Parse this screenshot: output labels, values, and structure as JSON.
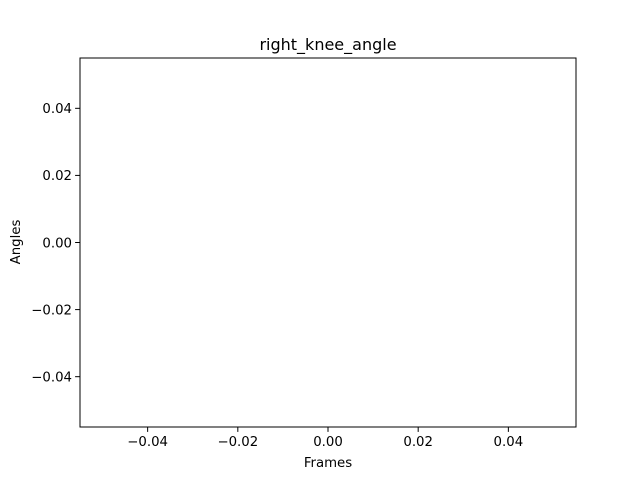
{
  "chart_data": {
    "type": "line",
    "title": "right_knee_angle",
    "xlabel": "Frames",
    "ylabel": "Angles",
    "xlim": [
      -0.055,
      0.055
    ],
    "ylim": [
      -0.055,
      0.055
    ],
    "xticks": [
      -0.04,
      -0.02,
      0.0,
      0.02,
      0.04
    ],
    "xtick_labels": [
      "−0.04",
      "−0.02",
      "0.00",
      "0.02",
      "0.04"
    ],
    "yticks": [
      -0.04,
      -0.02,
      0.0,
      0.02,
      0.04
    ],
    "ytick_labels": [
      "−0.04",
      "−0.02",
      "0.00",
      "0.02",
      "0.04"
    ],
    "series": [
      {
        "values": []
      }
    ],
    "grid": false,
    "colors": {
      "frame": "#000000",
      "background": "#ffffff"
    }
  }
}
